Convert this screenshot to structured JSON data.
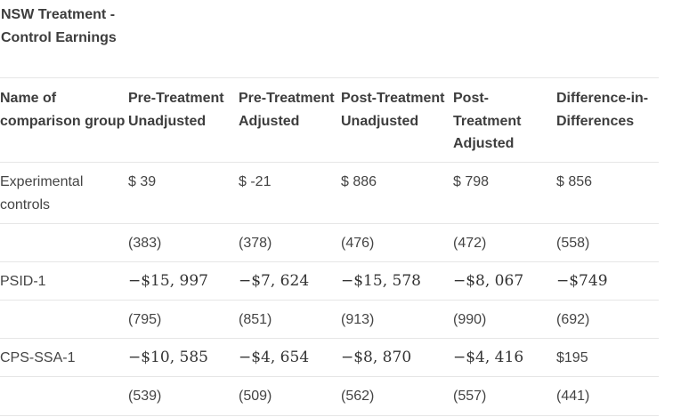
{
  "caption": "NSW Treatment - Control Earnings",
  "columns": [
    "Name of comparison group",
    "Pre-Treatment Unadjusted",
    "Pre-Treatment Adjusted",
    "Post-Treatment Unadjusted",
    "Post-Treatment Adjusted",
    "Difference-in-Differences"
  ],
  "rows": [
    {
      "group": "Experimental controls",
      "values": [
        "$ 39",
        "$ -21",
        "$ 886",
        "$ 798",
        "$ 856"
      ]
    },
    {
      "group": "",
      "values": [
        "(383)",
        "(378)",
        "(476)",
        "(472)",
        "(558)"
      ]
    },
    {
      "group": "PSID-1",
      "values": [
        "−$15, 997",
        "−$7, 624",
        "−$15, 578",
        "−$8, 067",
        "−$749"
      ]
    },
    {
      "group": "",
      "values": [
        "(795)",
        "(851)",
        "(913)",
        "(990)",
        "(692)"
      ]
    },
    {
      "group": "CPS-SSA-1",
      "values": [
        "−$10, 585",
        "−$4, 654",
        "−$8, 870",
        "−$4, 416",
        "$195"
      ]
    },
    {
      "group": "",
      "values": [
        "(539)",
        "(509)",
        "(562)",
        "(557)",
        "(441)"
      ]
    }
  ]
}
